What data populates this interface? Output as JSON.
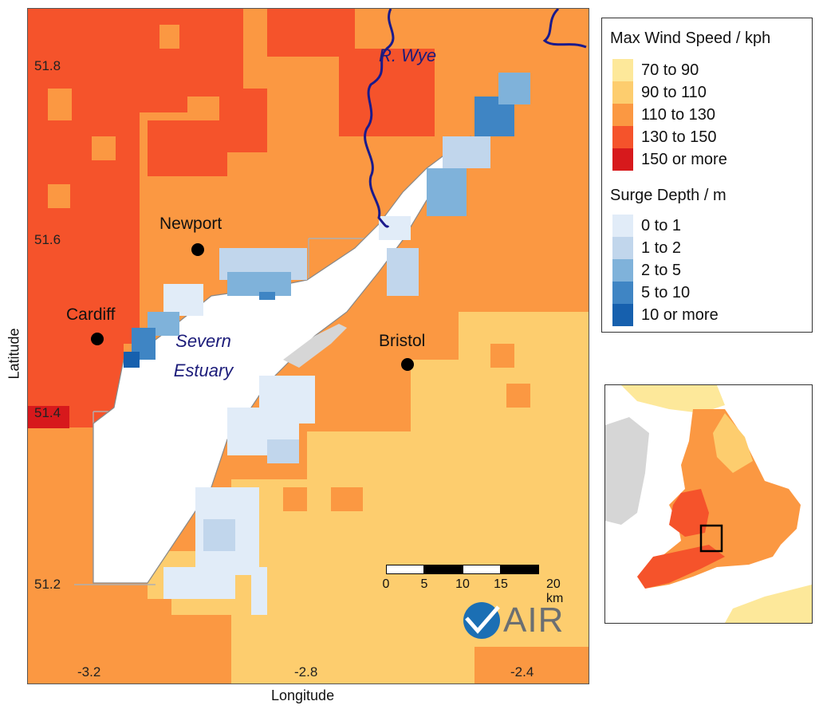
{
  "map": {
    "ticks": {
      "lat": [
        "51.8",
        "51.6",
        "51.4",
        "51.2"
      ],
      "lon": [
        "-3.2",
        "-2.8",
        "-2.4"
      ]
    },
    "xlabel": "Longitude",
    "ylabel": "Latitude",
    "cities": [
      {
        "name": "Newport"
      },
      {
        "name": "Cardiff"
      },
      {
        "name": "Bristol"
      }
    ],
    "water_labels": {
      "estuary": "Severn\nEstuary",
      "river": "R. Wye"
    }
  },
  "legend": {
    "wind_title": "Max Wind Speed / kph",
    "wind": [
      {
        "label": "70 to 90",
        "color": "#fde89a"
      },
      {
        "label": "90 to 110",
        "color": "#fdcd6e"
      },
      {
        "label": "110 to 130",
        "color": "#fb9842"
      },
      {
        "label": "130 to 150",
        "color": "#f5532b"
      },
      {
        "label": "150 or more",
        "color": "#d7191c"
      }
    ],
    "surge_title": "Surge Depth / m",
    "surge": [
      {
        "label": "0 to 1",
        "color": "#e1ecf8"
      },
      {
        "label": "1 to 2",
        "color": "#c1d6ec"
      },
      {
        "label": "2 to 5",
        "color": "#7fb2da"
      },
      {
        "label": "5 to 10",
        "color": "#3f85c4"
      },
      {
        "label": "10 or more",
        "color": "#1660ae"
      }
    ]
  },
  "scalebar": {
    "labels": [
      "0",
      "5",
      "10",
      "15",
      "20 km"
    ]
  },
  "logo": {
    "text": "AIR"
  },
  "colors": {
    "land_gray": "#d6d6d6",
    "river": "#1a1a8c",
    "grid": "#b0b0b0"
  }
}
